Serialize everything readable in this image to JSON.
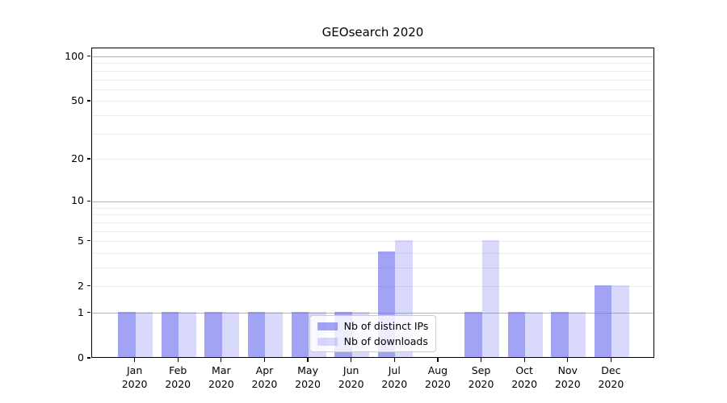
{
  "chart_data": {
    "type": "bar",
    "title": "GEOsearch 2020",
    "categories": [
      "Jan 2020",
      "Feb 2020",
      "Mar 2020",
      "Apr 2020",
      "May 2020",
      "Jun 2020",
      "Jul 2020",
      "Aug 2020",
      "Sep 2020",
      "Oct 2020",
      "Nov 2020",
      "Dec 2020"
    ],
    "series": [
      {
        "name": "Nb of distinct IPs",
        "color": "rgba(102,102,238,0.6)",
        "values": [
          1,
          1,
          1,
          1,
          1,
          1,
          4,
          0,
          1,
          1,
          1,
          2
        ]
      },
      {
        "name": "Nb of downloads",
        "color": "rgba(102,102,238,0.25)",
        "values": [
          1,
          1,
          1,
          1,
          1,
          1,
          5,
          0,
          5,
          1,
          1,
          2
        ]
      }
    ],
    "xlabel": "",
    "ylabel": "",
    "yscale": "log1p",
    "ylim": [
      0,
      114
    ],
    "yticks": [
      0,
      1,
      2,
      5,
      10,
      20,
      50,
      100
    ],
    "major_gridlines": [
      1,
      10,
      100
    ],
    "minor_gridlines": [
      2,
      3,
      4,
      5,
      6,
      7,
      8,
      9,
      20,
      30,
      40,
      50,
      60,
      70,
      80,
      90
    ],
    "grid": true,
    "bar_width": 0.4,
    "legend_position": "lower center"
  },
  "colors": {
    "bar_base": "#6666ee",
    "major_grid": "#b5b5b5",
    "minor_grid": "#ececec",
    "axis": "#000000",
    "text": "#000000",
    "legend_border": "#cccccc",
    "legend_bg": "rgba(255,255,255,0.8)"
  }
}
